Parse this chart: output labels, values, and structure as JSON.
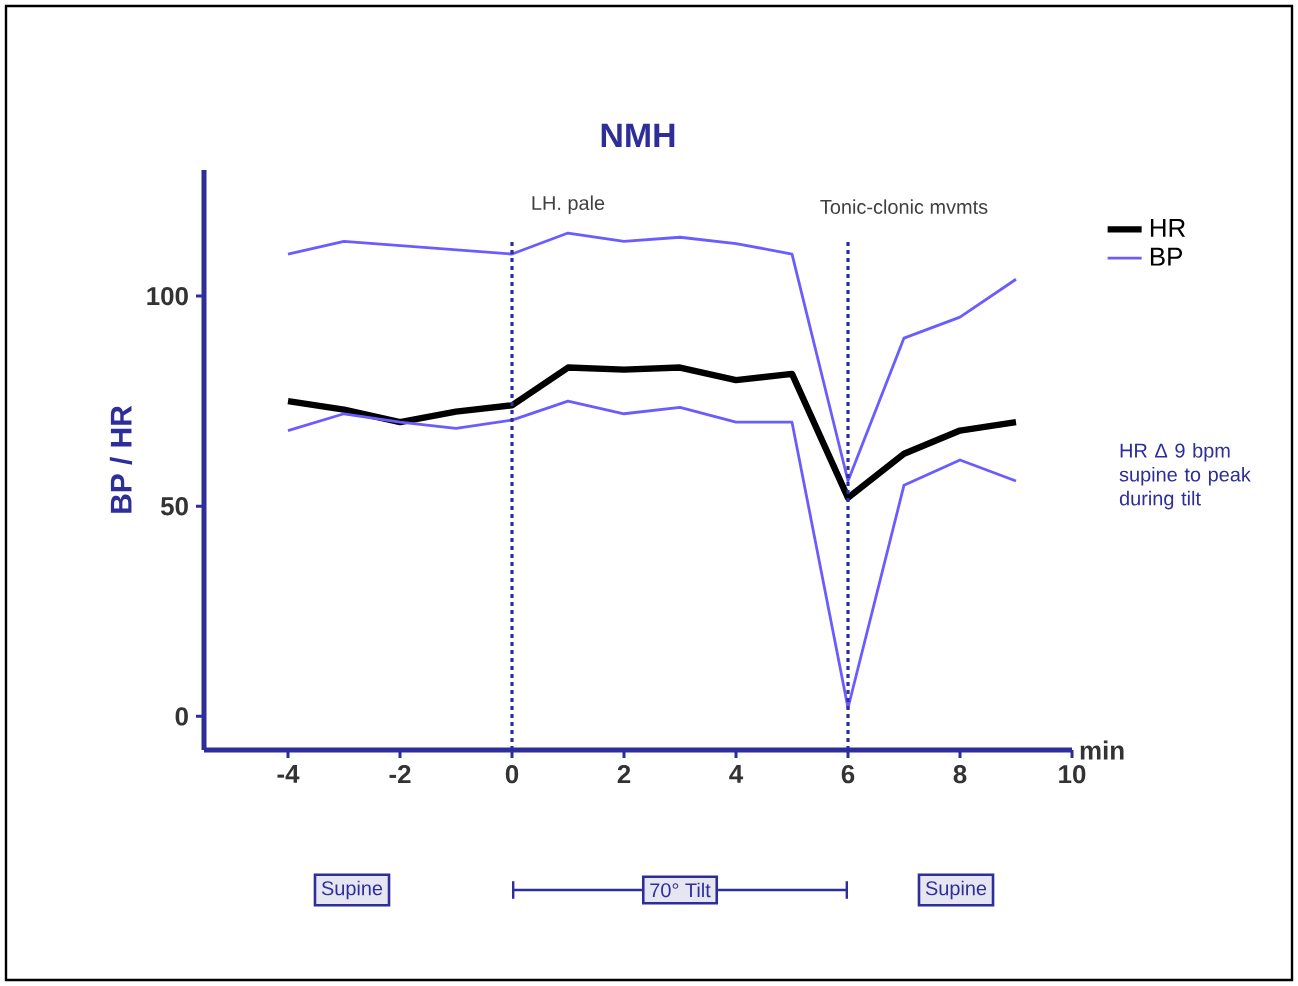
{
  "chart_data": {
    "type": "line",
    "title": "NMH",
    "xlabel": "min",
    "ylabel": "BP / HR",
    "x": [
      -4,
      -3,
      -2,
      -1,
      0,
      1,
      2,
      3,
      4,
      5,
      6,
      7,
      8,
      9
    ],
    "series": [
      {
        "name": "HR",
        "color": "#000000",
        "values": [
          75,
          73,
          70,
          72.5,
          74,
          83,
          82.5,
          83,
          80,
          81.5,
          52,
          62.5,
          68,
          70
        ]
      },
      {
        "name": "BP",
        "color": "#6a5cff",
        "values": [
          110,
          113,
          112,
          111,
          110,
          115,
          113,
          114,
          112.5,
          110,
          56,
          90,
          95,
          104
        ]
      },
      {
        "color": "#6a5cff",
        "values": [
          68,
          72,
          70,
          68.5,
          70.5,
          75,
          72,
          73.5,
          70,
          70,
          2,
          55,
          61,
          56
        ]
      }
    ],
    "xlim": [
      -5.5,
      10
    ],
    "ylim": [
      -8,
      130
    ],
    "xticks": [
      -4,
      -2,
      0,
      2,
      4,
      6,
      8,
      10
    ],
    "yticks": [
      0,
      50,
      100
    ],
    "ref_lines": [
      {
        "axis": "x",
        "value": 0,
        "label": "LH. pale",
        "line_style": "dotted",
        "color": "#2e2e9a"
      },
      {
        "axis": "x",
        "value": 6,
        "label": "Tonic-clonic mvmts",
        "line_style": "dotted",
        "color": "#2e2e9a"
      }
    ],
    "annotations": [
      "HR Δ 9 bpm supine to peak during tilt",
      "Supine",
      "70° Tilt",
      "Supine"
    ],
    "legend": "right",
    "grid": false
  }
}
